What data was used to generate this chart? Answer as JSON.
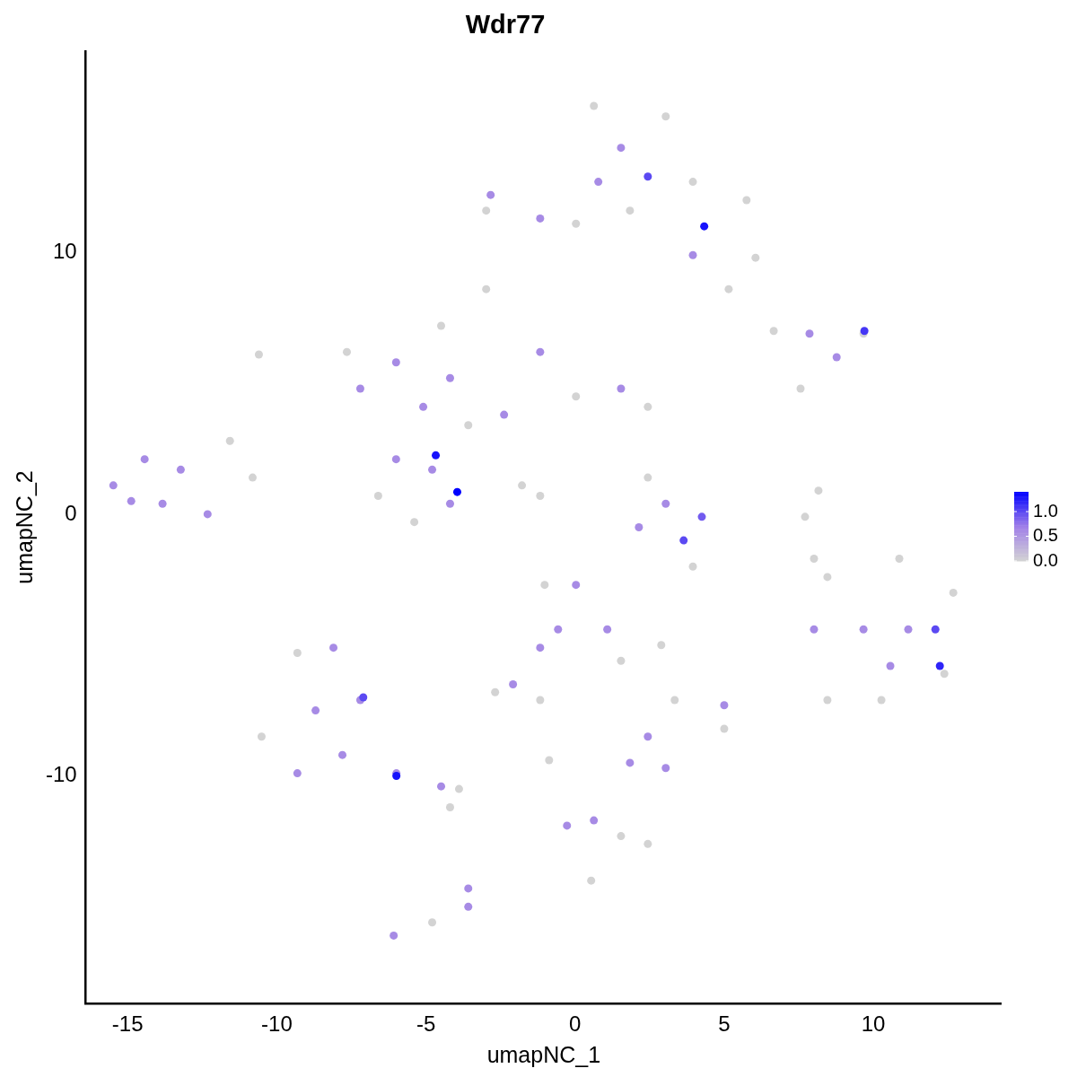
{
  "chart_data": {
    "type": "scatter",
    "title": "Wdr77",
    "xlabel": "umapNC_1",
    "ylabel": "umapNC_2",
    "marker": "circle",
    "xlim": [
      -16.4,
      14.3
    ],
    "ylim": [
      -18.7,
      17.7
    ],
    "xticks": [
      -15,
      -10,
      -5,
      0,
      5,
      10
    ],
    "yticks": [
      -10,
      0,
      10
    ],
    "clim": [
      0,
      1.4
    ],
    "cticks": [
      {
        "value": 0,
        "label": "0.0"
      },
      0.5,
      {
        "value": 1,
        "label": "1.0"
      }
    ],
    "x": [
      0.63,
      3.04,
      3.95,
      5.75,
      6.05,
      5.15,
      1.84,
      -2.98,
      0.03,
      -2.98,
      6.66,
      9.67,
      7.56,
      -7.65,
      -4.49,
      -3.58,
      0.03,
      2.44,
      -6.6,
      -5.39,
      -1.78,
      -1.17,
      -10.6,
      -11.57,
      -10.81,
      2.44,
      3.95,
      8.46,
      10.87,
      12.68,
      12.38,
      10.27,
      8.46,
      8.16,
      7.71,
      8.01,
      -1.02,
      1.54,
      -2.68,
      2.89,
      -9.31,
      -10.51,
      -3.89,
      -4.19,
      -4.79,
      -0.87,
      2.44,
      1.54,
      0.54,
      5.0,
      3.34,
      -1.17,
      1.54,
      0.78,
      3.95,
      -2.83,
      -1.17,
      7.86,
      8.77,
      -7.2,
      -6.0,
      -5.09,
      -4.19,
      -1.17,
      1.54,
      -2.38,
      -4.19,
      -6.0,
      -4.79,
      -15.48,
      -14.43,
      -13.22,
      -13.83,
      -12.32,
      -14.88,
      3.04,
      2.14,
      8.01,
      9.67,
      11.17,
      10.57,
      0.03,
      -0.57,
      1.08,
      -1.17,
      -2.08,
      -8.1,
      -7.2,
      -9.31,
      -7.8,
      -5.99,
      -4.49,
      -8.7,
      -3.58,
      -3.58,
      -6.08,
      -0.27,
      0.63,
      5.0,
      1.84,
      2.44,
      3.04,
      -4.67,
      -3.95,
      3.64,
      4.25,
      12.08,
      12.23,
      4.33,
      2.44,
      -5.99,
      -7.1,
      9.7
    ],
    "values": [
      15.6,
      15.2,
      12.7,
      12.0,
      9.8,
      8.6,
      11.6,
      11.6,
      11.1,
      8.6,
      7.0,
      6.9,
      4.8,
      6.2,
      7.2,
      3.4,
      4.5,
      4.1,
      0.7,
      -0.3,
      1.1,
      0.7,
      6.1,
      2.8,
      1.4,
      1.4,
      -2.0,
      -2.4,
      -1.7,
      -3.0,
      -6.1,
      -7.1,
      -7.1,
      0.9,
      -0.1,
      -1.7,
      -2.7,
      -5.6,
      -6.8,
      -5.0,
      -5.3,
      -8.5,
      -10.5,
      -11.2,
      -15.6,
      -9.4,
      -12.6,
      -12.3,
      -14.0,
      -8.2,
      -7.1,
      -7.1,
      14.0,
      12.7,
      9.9,
      12.2,
      11.3,
      6.9,
      6.0,
      4.8,
      5.8,
      4.1,
      5.2,
      6.2,
      4.8,
      3.8,
      0.4,
      2.1,
      1.7,
      1.1,
      2.1,
      1.7,
      0.4,
      0.0,
      0.5,
      0.4,
      -0.5,
      -4.4,
      -4.4,
      -4.4,
      -5.8,
      -2.7,
      -4.4,
      -4.4,
      -5.1,
      -6.5,
      -5.1,
      -7.1,
      -9.9,
      -9.2,
      -9.9,
      -10.4,
      -7.5,
      -14.3,
      -15.0,
      -16.1,
      -11.9,
      -11.7,
      -7.3,
      -9.5,
      -8.5,
      -9.7,
      2.25,
      0.85,
      -1.0,
      -0.1,
      -4.4,
      -5.8,
      11.0,
      12.9,
      -10.0,
      -7.0,
      7.0
    ],
    "cvalues": [
      0,
      0,
      0,
      0,
      0,
      0,
      0,
      0,
      0,
      0,
      0,
      0,
      0,
      0,
      0,
      0,
      0,
      0,
      0,
      0,
      0,
      0,
      0,
      0,
      0,
      0,
      0,
      0,
      0,
      0,
      0,
      0,
      0,
      0,
      0,
      0,
      0,
      0,
      0,
      0,
      0,
      0,
      0,
      0,
      0,
      0,
      0,
      0,
      0,
      0,
      0,
      0,
      0.6,
      0.6,
      0.6,
      0.6,
      0.6,
      0.6,
      0.6,
      0.6,
      0.6,
      0.6,
      0.6,
      0.6,
      0.6,
      0.6,
      0.6,
      0.6,
      0.6,
      0.6,
      0.6,
      0.6,
      0.6,
      0.6,
      0.6,
      0.6,
      0.6,
      0.6,
      0.6,
      0.6,
      0.6,
      0.6,
      0.6,
      0.6,
      0.6,
      0.6,
      0.6,
      0.6,
      0.6,
      0.6,
      0.6,
      0.6,
      0.6,
      0.6,
      0.6,
      0.6,
      0.6,
      0.6,
      0.6,
      0.6,
      0.6,
      0.6,
      1.3,
      1.4,
      1.0,
      0.9,
      1.0,
      1.2,
      1.3,
      1.0,
      1.3,
      1.0,
      1.1
    ]
  }
}
